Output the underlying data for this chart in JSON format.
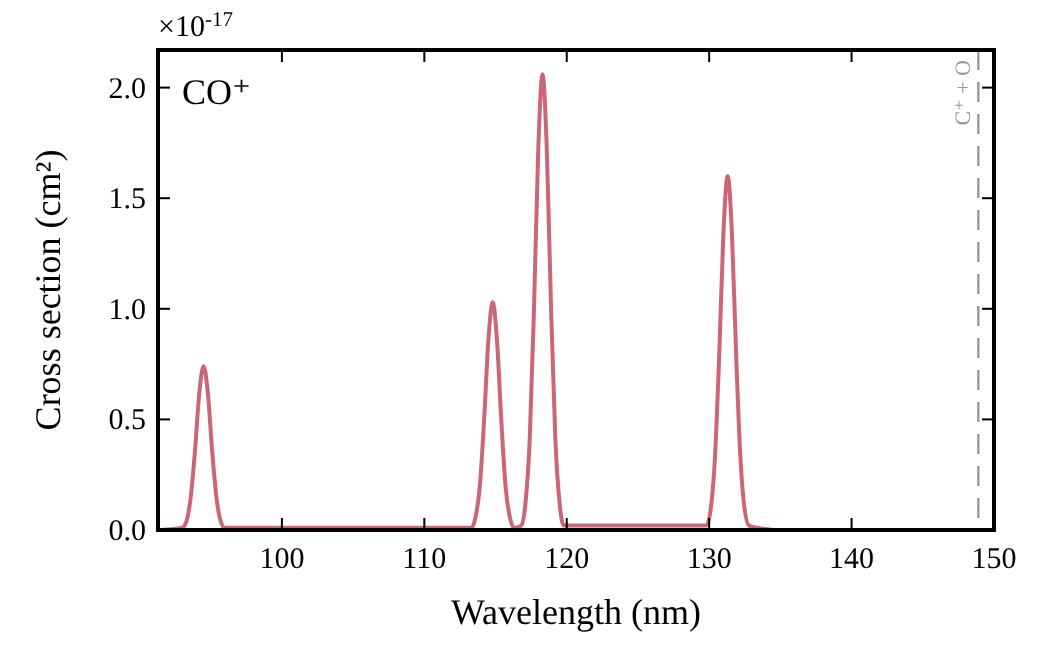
{
  "chart_data": {
    "type": "line",
    "xlabel": "Wavelength (nm)",
    "ylabel": "Cross section (cm²)",
    "annotations": [
      "×10$^{-17}$",
      "CO⁺"
    ],
    "xlim": [
      91.3,
      150
    ],
    "xticks": [
      100,
      110,
      120,
      130,
      140,
      150
    ],
    "ylim": [
      0,
      2.17
    ],
    "yticks": [
      {
        "value": 0,
        "label": "0.0"
      },
      {
        "value": 0.5,
        "label": "0.5"
      },
      {
        "value": 1,
        "label": "1.0"
      },
      {
        "value": 1.5,
        "label": "1.5"
      },
      {
        "value": 2,
        "label": "2.0"
      }
    ],
    "line_style": "solid",
    "ref_lines": [
      {
        "axis": "x",
        "value": 148.9,
        "label": "C⁺ + O",
        "color": "#999999",
        "line_style": "dashed"
      }
    ],
    "series": [
      {
        "color": "#cc6677",
        "x": [
          91.5,
          93.0,
          93.3,
          93.6,
          93.9,
          94.2,
          94.5,
          94.8,
          95.1,
          95.4,
          95.7,
          96.0,
          113.3,
          113.6,
          113.9,
          114.2,
          114.5,
          114.8,
          115.1,
          115.4,
          115.7,
          116.0,
          116.3,
          116.8,
          117.1,
          117.4,
          117.7,
          118.0,
          118.3,
          118.6,
          118.9,
          119.2,
          119.5,
          119.8,
          129.8,
          130.1,
          130.4,
          130.7,
          131.0,
          131.3,
          131.6,
          131.9,
          132.2,
          132.5,
          132.8,
          134.5
        ],
        "values": [
          0,
          0.01,
          0.04,
          0.15,
          0.36,
          0.62,
          0.74,
          0.62,
          0.36,
          0.15,
          0.04,
          0.01,
          0.01,
          0.06,
          0.2,
          0.5,
          0.86,
          1.03,
          0.86,
          0.5,
          0.2,
          0.06,
          0.01,
          0.02,
          0.12,
          0.41,
          1.0,
          1.72,
          2.06,
          1.72,
          1.0,
          0.41,
          0.12,
          0.02,
          0.02,
          0.09,
          0.32,
          0.78,
          1.34,
          1.6,
          1.34,
          0.78,
          0.32,
          0.09,
          0.02,
          0
        ]
      }
    ]
  }
}
